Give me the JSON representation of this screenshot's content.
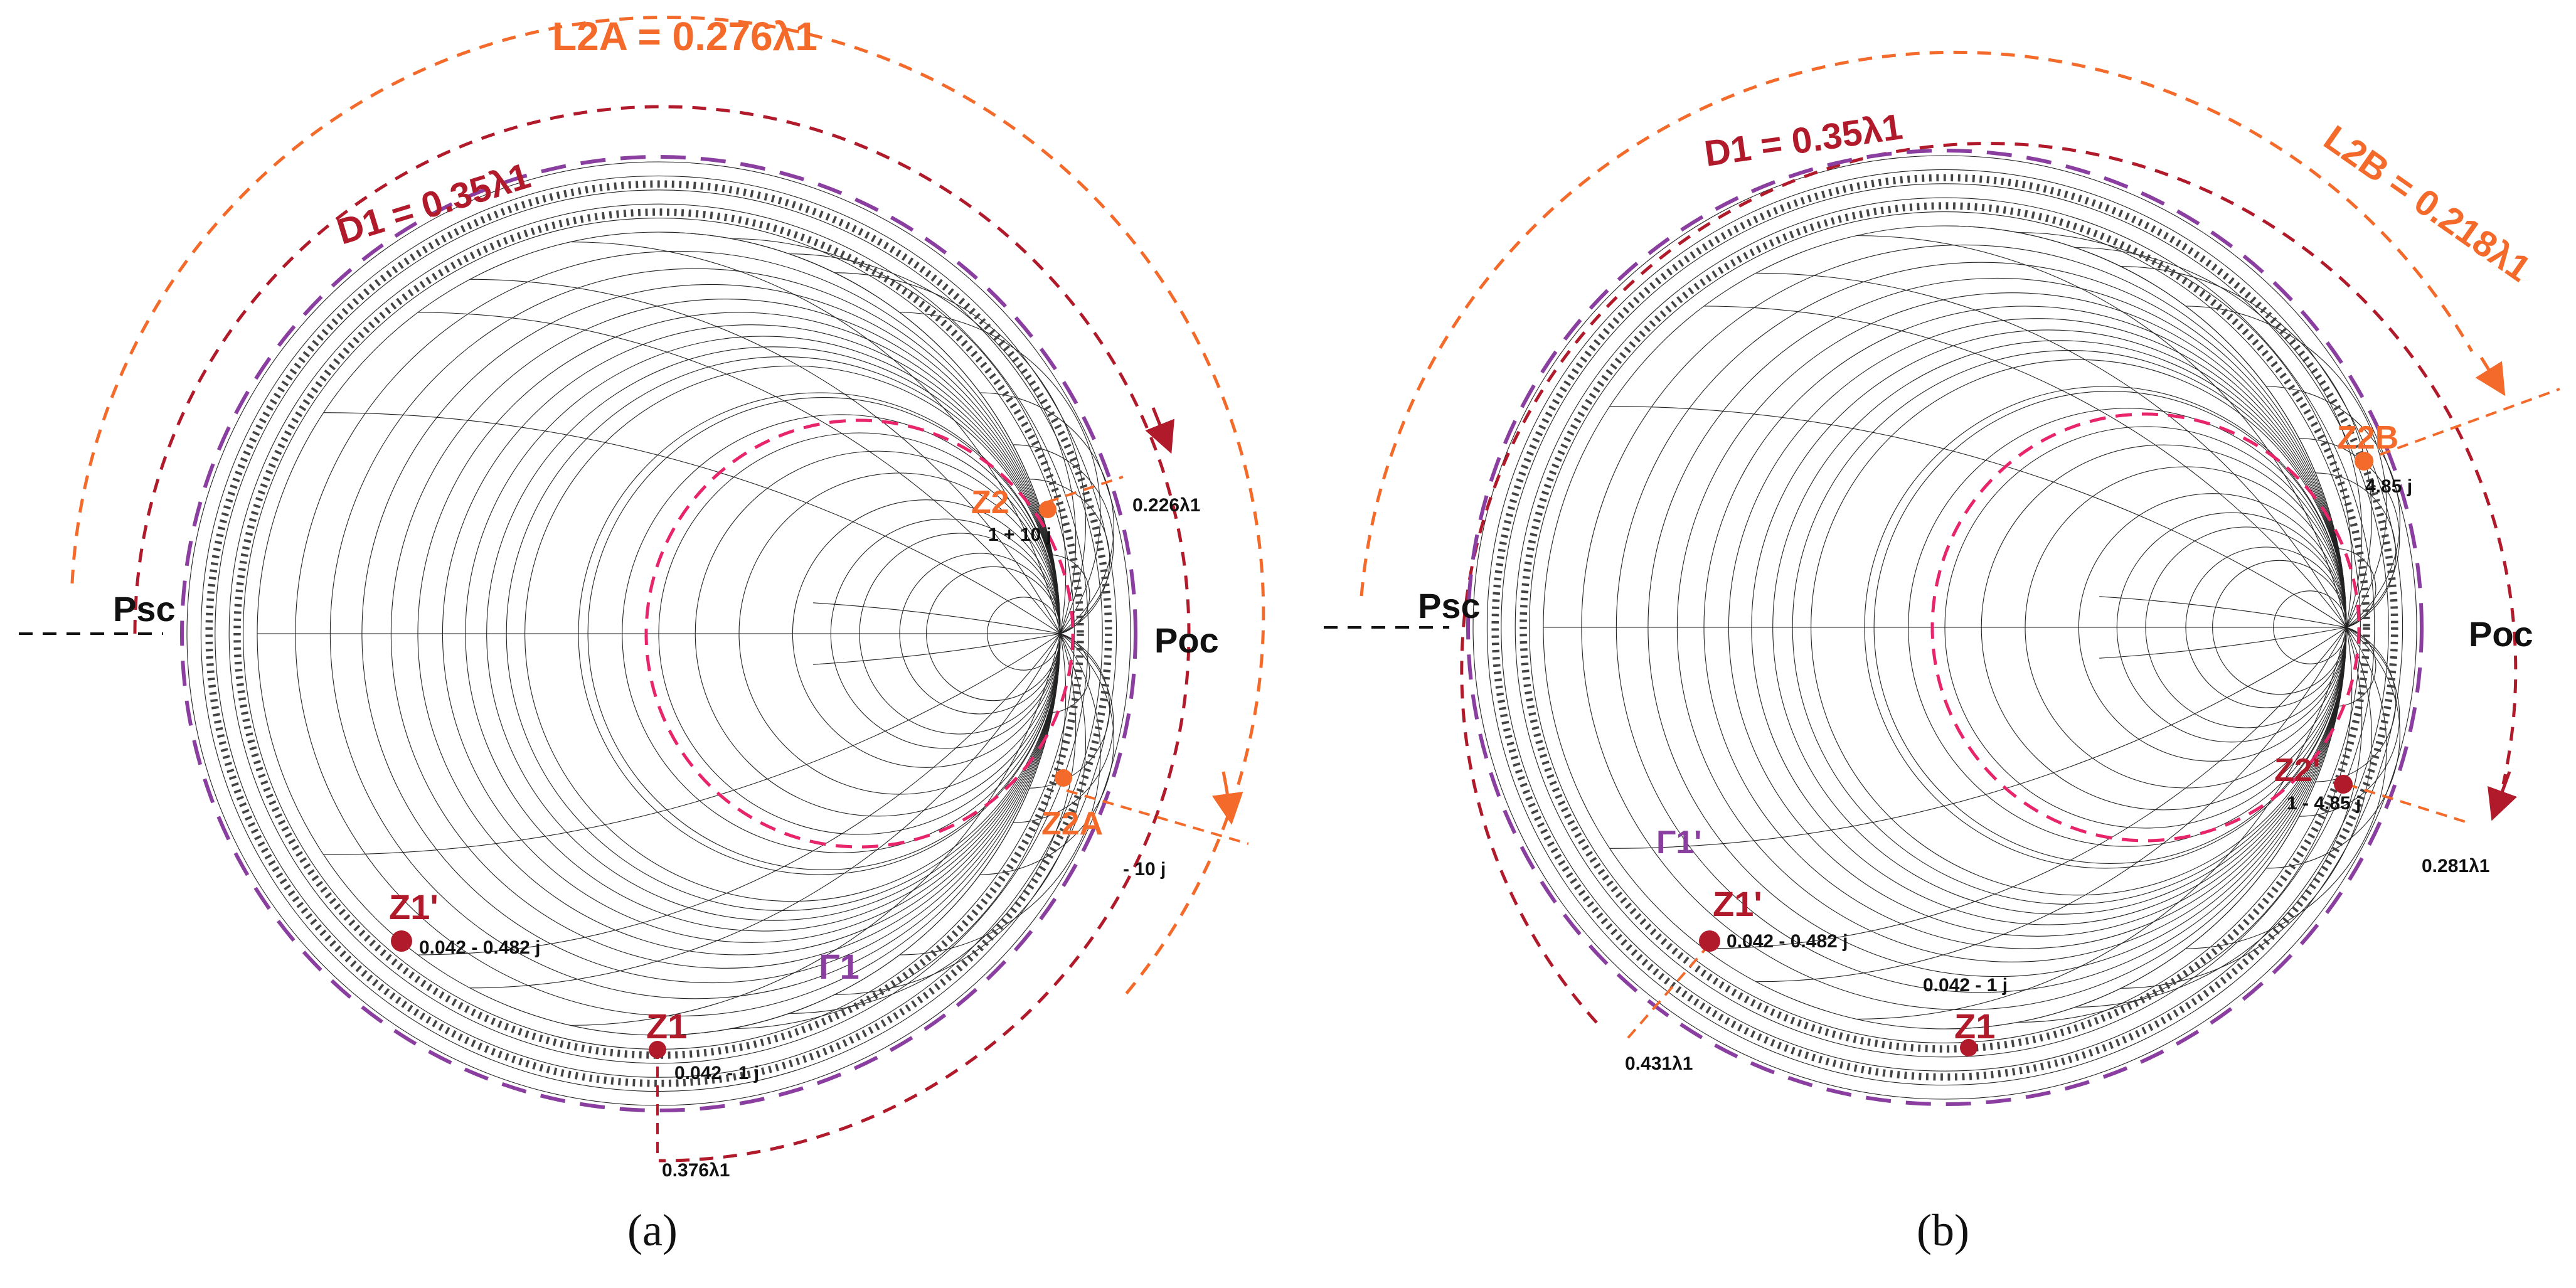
{
  "colors": {
    "dark_red": "#b01a2a",
    "orange": "#f46a2a",
    "pink": "#e8246a",
    "purple": "#8a3fa0",
    "black": "#111111"
  },
  "panel_a": {
    "caption": "(a)",
    "L2_label": "L2A = 0.276λ1",
    "D1_label": "D1 = 0.35λ1",
    "z2_label": "Z2",
    "z2_value": "1 + 10 j",
    "z2a_label": "Z2A",
    "z2a_value": "- 10 j",
    "z1p_label": "Z1'",
    "z1p_value": "0.042 - 0.482 j",
    "z1_label": "Z1",
    "z1_value": "0.042 - 1 j",
    "gamma_label": "Γ1",
    "psc": "Psc",
    "poc": "Poc",
    "wl_top": "0.226λ1",
    "wl_bottom": "0.376λ1"
  },
  "panel_b": {
    "caption": "(b)",
    "L2_label": "L2B = 0.218λ1",
    "D1_label": "D1 = 0.35λ1",
    "z2b_label": "Z2B",
    "z2b_value": "4.85 j",
    "z2p_label": "Z2'",
    "z2p_value": "1 - 4.85 j",
    "z1p_label": "Z1'",
    "z1p_value": "0.042 - 0.482 j",
    "z1_label": "Z1",
    "z1_value": "0.042 - 1 j",
    "gamma_label": "Γ1'",
    "psc": "Psc",
    "poc": "Poc",
    "wl_right": "0.281λ1",
    "wl_left": "0.431λ1"
  }
}
